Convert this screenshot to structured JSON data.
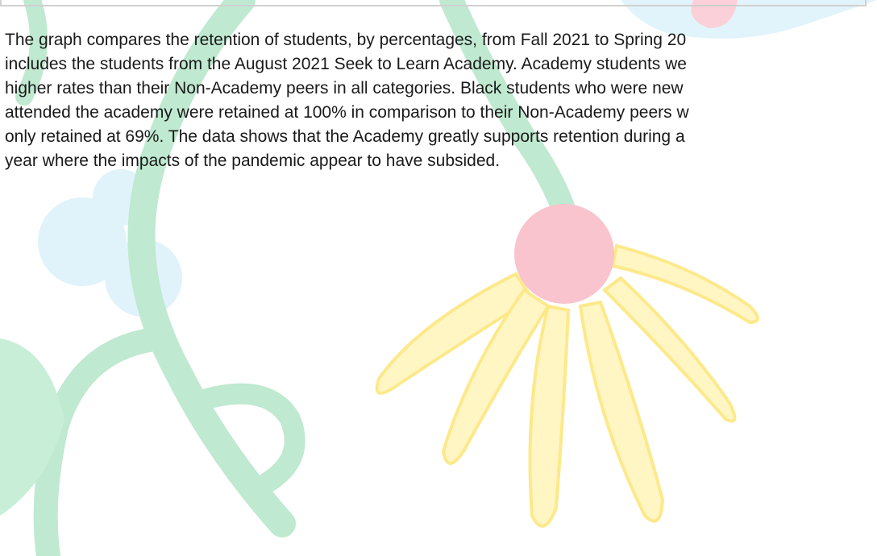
{
  "paragraph": {
    "lines": [
      "The graph compares the retention of students, by percentages, from Fall 2021 to Spring 20",
      "includes the students from the August 2021 Seek to Learn Academy. Academy students we",
      "higher rates than their Non-Academy peers in all categories. Black students who were new",
      "attended the academy were retained at 100% in comparison to their Non-Academy peers w",
      "only retained at 69%. The data shows that the Academy greatly supports retention during a",
      "year where the impacts of the pandemic appear to have subsided."
    ]
  }
}
